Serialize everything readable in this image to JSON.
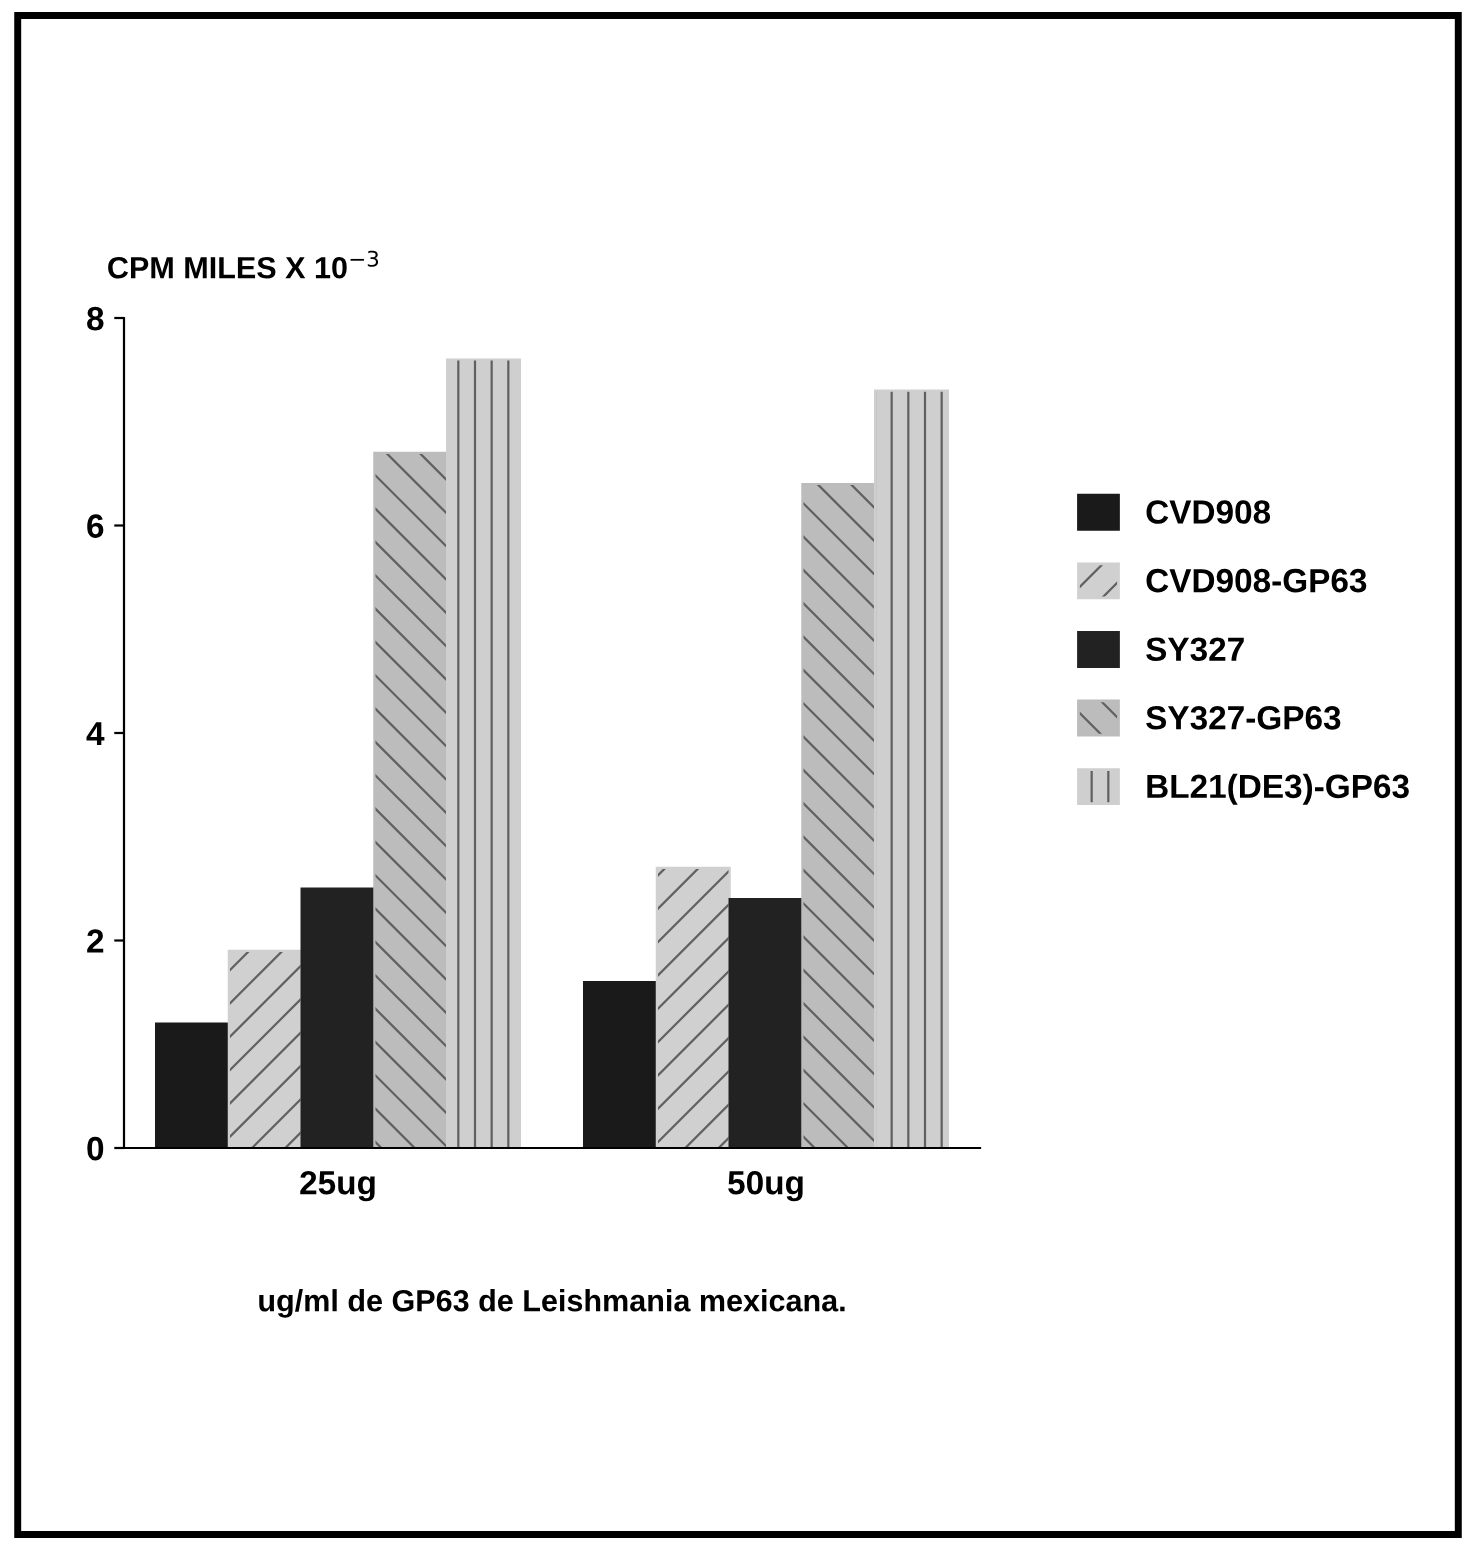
{
  "chart_data": {
    "type": "bar",
    "ylabel": "CPM MILES X 10$^{−3}$",
    "xlabel": "ug/ml de GP63 de Leishmania mexicana.",
    "categories": [
      "25ug",
      "50ug"
    ],
    "series": [
      {
        "name": "CVD908",
        "color": "#1a1a1a",
        "values": [
          1.2,
          1.6
        ]
      },
      {
        "name": "CVD908-GP63",
        "color": "#d0d0d0",
        "values": [
          1.9,
          2.7
        ]
      },
      {
        "name": "SY327",
        "color": "#222222",
        "values": [
          2.5,
          2.4
        ]
      },
      {
        "name": "SY327-GP63",
        "color": "#bcbcbc",
        "values": [
          6.7,
          6.4
        ]
      },
      {
        "name": "BL21(DE3)-GP63",
        "color": "#cfcfcf",
        "values": [
          7.6,
          7.3
        ]
      }
    ],
    "ylim": [
      0,
      8
    ],
    "yticks": [
      0,
      2,
      4,
      6,
      8
    ],
    "grid": false,
    "legend": "right"
  }
}
